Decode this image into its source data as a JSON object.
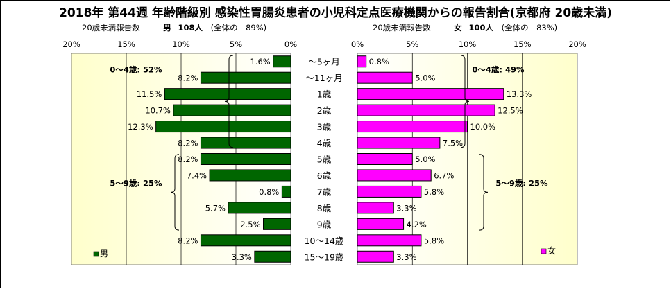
{
  "title": "2018年 第44週 年齢階級別 感染性胃腸炎患者の小児科定点医療機関からの報告割合(京都府 20歳未満)",
  "male": {
    "note_label": "20歳未満報告数",
    "name": "男",
    "count": "108人",
    "share": "(全体の　89%)",
    "legend": "男",
    "color": "#006600"
  },
  "female": {
    "note_label": "20歳未満報告数",
    "name": "女",
    "count": "100人",
    "share": "(全体の　83%)",
    "legend": "女",
    "color": "#ff00ff"
  },
  "plot_bg_color": "#ffffcc",
  "chart_data": [
    {
      "type": "bar",
      "orientation": "horizontal",
      "direction": "right-to-left",
      "series_name": "男",
      "categories": [
        "～5ヶ月",
        "～11ヶ月",
        "1歳",
        "2歳",
        "3歳",
        "4歳",
        "5歳",
        "6歳",
        "7歳",
        "8歳",
        "9歳",
        "10～14歳",
        "15～19歳"
      ],
      "values": [
        1.6,
        8.2,
        11.5,
        10.7,
        12.3,
        8.2,
        8.2,
        7.4,
        0.8,
        5.7,
        2.5,
        8.2,
        3.3
      ],
      "value_labels": [
        "1.6%",
        "8.2%",
        "11.5%",
        "10.7%",
        "12.3%",
        "8.2%",
        "8.2%",
        "7.4%",
        "0.8%",
        "5.7%",
        "2.5%",
        "8.2%",
        "3.3%"
      ],
      "xlim": [
        0,
        20
      ],
      "ticks": [
        "20%",
        "15%",
        "10%",
        "5%",
        "0%"
      ],
      "grid": true,
      "legend": "bottom-left",
      "annotations": [
        "0～4歳: 52%",
        "5～9歳: 25%"
      ]
    },
    {
      "type": "bar",
      "orientation": "horizontal",
      "direction": "left-to-right",
      "series_name": "女",
      "categories": [
        "～5ヶ月",
        "～11ヶ月",
        "1歳",
        "2歳",
        "3歳",
        "4歳",
        "5歳",
        "6歳",
        "7歳",
        "8歳",
        "9歳",
        "10～14歳",
        "15～19歳"
      ],
      "values": [
        0.8,
        5.0,
        13.3,
        12.5,
        10.0,
        7.5,
        5.0,
        6.7,
        5.8,
        3.3,
        4.2,
        5.8,
        3.3
      ],
      "value_labels": [
        "0.8%",
        "5.0%",
        "13.3%",
        "12.5%",
        "10.0%",
        "7.5%",
        "5.0%",
        "6.7%",
        "5.8%",
        "3.3%",
        "4.2%",
        "5.8%",
        "3.3%"
      ],
      "xlim": [
        0,
        20
      ],
      "ticks": [
        "0%",
        "5%",
        "10%",
        "15%",
        "20%"
      ],
      "grid": true,
      "legend": "bottom-right",
      "annotations": [
        "0～4歳: 49%",
        "5～9歳: 25%"
      ]
    }
  ]
}
